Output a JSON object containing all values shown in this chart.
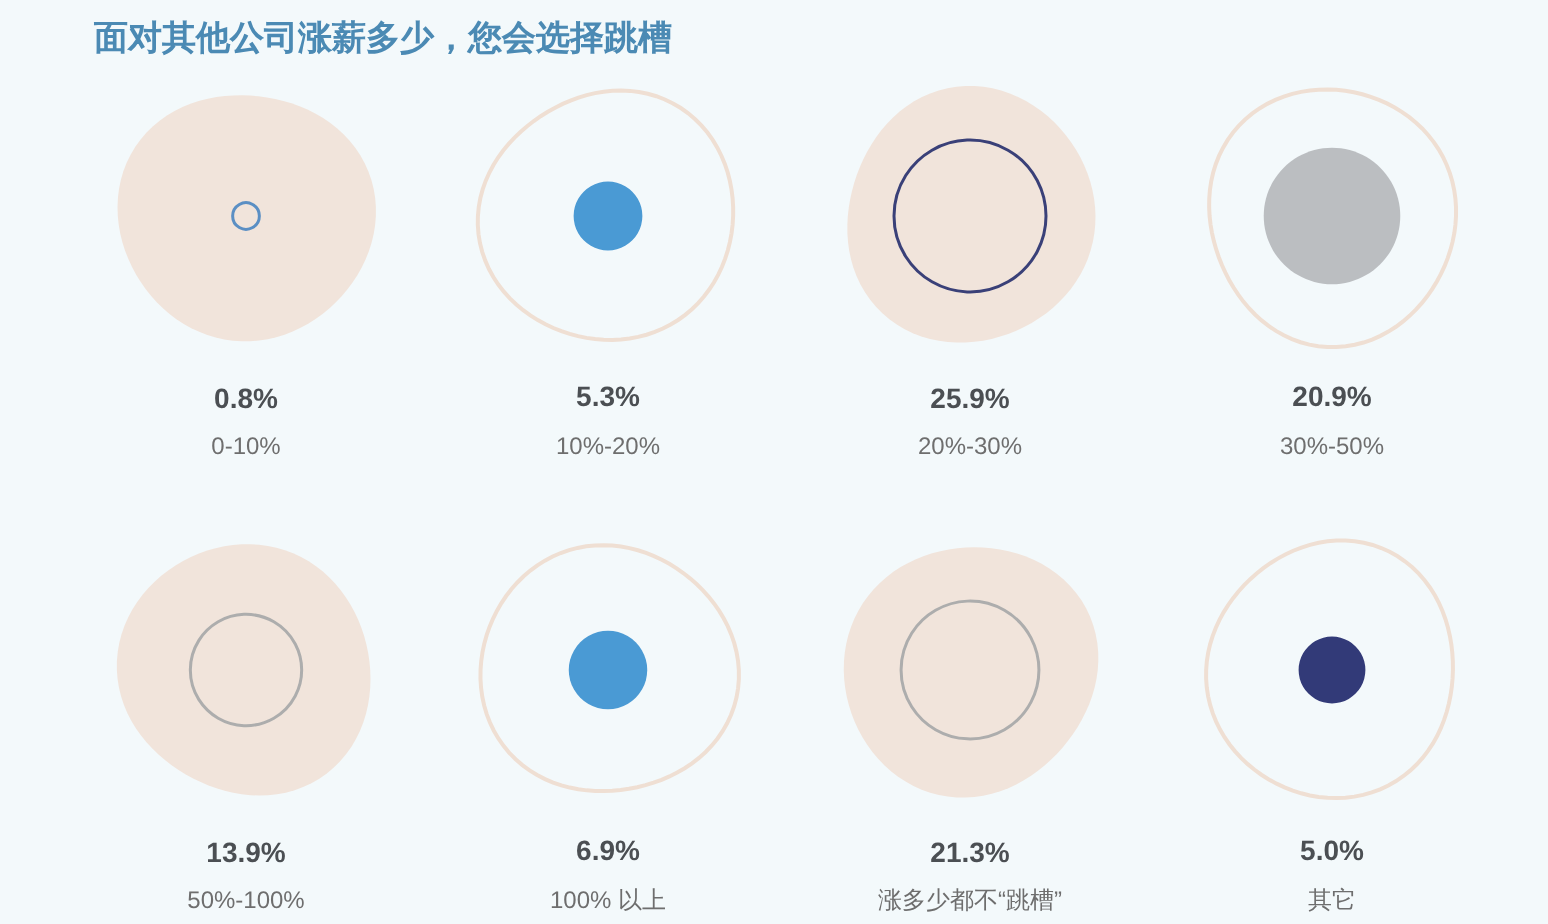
{
  "chart_data": {
    "type": "other",
    "title": "面对其他公司涨薪多少，您会选择跳槽",
    "categories": [
      "0-10%",
      "10%-20%",
      "20%-30%",
      "30%-50%",
      "50%-100%",
      "100% 以上",
      "涨多少都不“跳槽”",
      "其它"
    ],
    "values": [
      0.8,
      5.3,
      25.9,
      20.9,
      13.9,
      6.9,
      21.3,
      5.0
    ],
    "value_labels": [
      "0.8%",
      "5.3%",
      "25.9%",
      "20.9%",
      "13.9%",
      "6.9%",
      "21.3%",
      "5.0%"
    ],
    "colors": [
      "#5b8fc4",
      "#4a9ad4",
      "#3a4078",
      "#bbbec1",
      "#adadad",
      "#4a9ad4",
      "#adadad",
      "#323a78"
    ]
  }
}
